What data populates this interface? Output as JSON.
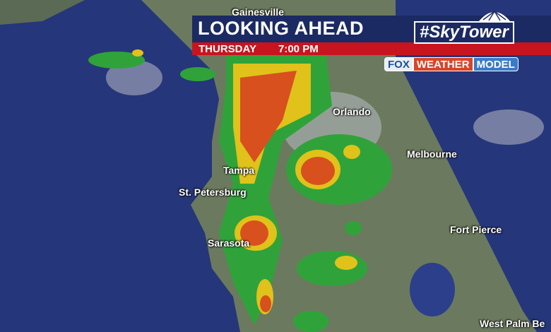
{
  "header": {
    "title": "LOOKING AHEAD",
    "day": "THURSDAY",
    "time": "7:00 PM",
    "brand": "#SkyTower"
  },
  "logos": {
    "fox": "FOX",
    "weather": "WEATHER",
    "model": "MODEL"
  },
  "cities": [
    "Gainesville",
    "Orlando",
    "Melbourne",
    "Tampa",
    "St. Petersburg",
    "Sarasota",
    "Fort Pierce",
    "West Palm Be"
  ],
  "colors": {
    "navy": "#1b2a63",
    "red": "#c8141e",
    "ocean": "#26367a",
    "rain_light": "#2fa33a",
    "rain_moderate": "#e0c21a",
    "rain_heavy": "#d8501e"
  }
}
